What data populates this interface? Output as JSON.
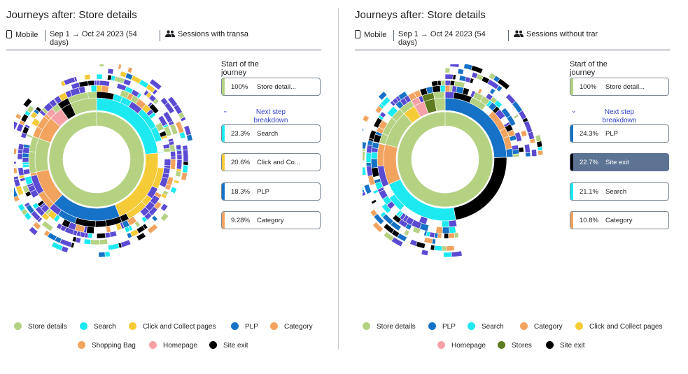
{
  "colors": {
    "store_details": "#b5d283",
    "search": "#1de9f1",
    "click_collect": "#f5cb38",
    "plp": "#1672c6",
    "category": "#f2a45f",
    "shopping_bag": "#f2a45f",
    "homepage": "#f6a1a8",
    "stores": "#5f7b1f",
    "site_exit": "#000000",
    "purple": "#5b4bd3",
    "red": "#ee1b1b",
    "selected_bg": "#5d7394"
  },
  "left": {
    "title": "Journeys after: Store details",
    "device": "Mobile",
    "date_range_line1": "Sep 1 → Oct 24 2023 (54",
    "date_range_line2": "days)",
    "segment": "Sessions  with transa",
    "start_label_line1": "Start of the",
    "start_label_line2": "journey",
    "start_card": {
      "pct": "100%",
      "label": "Store detail..."
    },
    "next_line1": "Next step",
    "next_line2": "breakdown",
    "breakdown": [
      {
        "pct": "23.3%",
        "label": "Search",
        "color": "#1de9f1"
      },
      {
        "pct": "20.6%",
        "label": "Click and Co...",
        "color": "#f5cb38"
      },
      {
        "pct": "18.3%",
        "label": "PLP",
        "color": "#1672c6"
      },
      {
        "pct": "9.28%",
        "label": "Category",
        "color": "#f2a45f"
      }
    ],
    "legend": [
      {
        "label": "Store details",
        "color": "#b5d283"
      },
      {
        "label": "Search",
        "color": "#1de9f1"
      },
      {
        "label": "Click and Collect pages",
        "color": "#f5cb38"
      },
      {
        "label": "PLP",
        "color": "#1672c6"
      },
      {
        "label": "Category",
        "color": "#f2a45f"
      },
      {
        "label": "Shopping Bag",
        "color": "#f2a45f"
      },
      {
        "label": "Homepage",
        "color": "#f6a1a8"
      },
      {
        "label": "Site exit",
        "color": "#000000"
      }
    ]
  },
  "right": {
    "title": "Journeys after: Store details",
    "device": "Mobile",
    "date_range_line1": "Sep 1 → Oct 24 2023 (54",
    "date_range_line2": "days)",
    "segment": "Sessions  without trar",
    "start_label_line1": "Start of the",
    "start_label_line2": "journey",
    "start_card": {
      "pct": "100%",
      "label": "Store detail..."
    },
    "next_line1": "Next step",
    "next_line2": "breakdown",
    "breakdown": [
      {
        "pct": "24.3%",
        "label": "PLP",
        "color": "#1672c6"
      },
      {
        "pct": "22.7%",
        "label": "Site exit",
        "color": "#000000"
      },
      {
        "pct": "21.1%",
        "label": "Search",
        "color": "#1de9f1"
      },
      {
        "pct": "10.8%",
        "label": "Category",
        "color": "#f2a45f"
      }
    ],
    "legend": [
      {
        "label": "Store details",
        "color": "#b5d283"
      },
      {
        "label": "PLP",
        "color": "#1672c6"
      },
      {
        "label": "Search",
        "color": "#1de9f1"
      },
      {
        "label": "Category",
        "color": "#f2a45f"
      },
      {
        "label": "Click and Collect pages",
        "color": "#f5cb38"
      },
      {
        "label": "Homepage",
        "color": "#f6a1a8"
      },
      {
        "label": "Stores",
        "color": "#5f7b1f"
      },
      {
        "label": "Site exit",
        "color": "#000000"
      }
    ]
  }
}
